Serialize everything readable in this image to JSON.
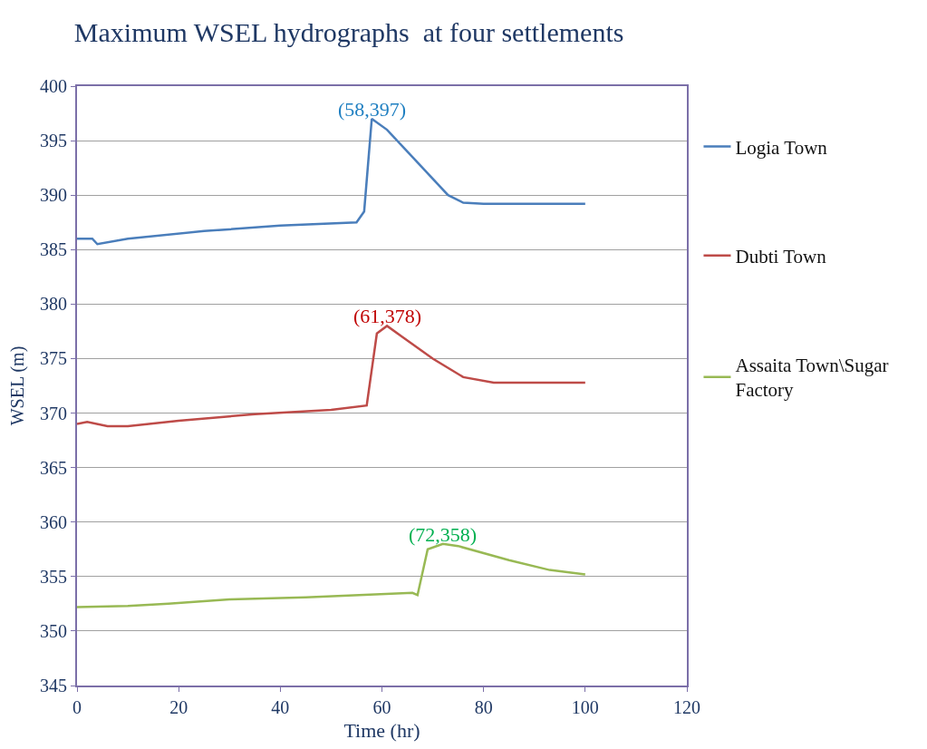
{
  "chart_data": {
    "type": "line",
    "title": "Maximum WSEL hydrographs  at four settlements",
    "xlabel": "Time (hr)",
    "ylabel": "WSEL (m)",
    "xlim": [
      0,
      120
    ],
    "xticks": [
      0,
      20,
      40,
      60,
      80,
      100,
      120
    ],
    "ylim": [
      345,
      400
    ],
    "yticks": [
      345,
      350,
      355,
      360,
      365,
      370,
      375,
      380,
      385,
      390,
      395,
      400
    ],
    "grid": "y",
    "legend": "right",
    "marker": "none",
    "line_style": "solid",
    "series": [
      {
        "name": "Logia Town",
        "color": "#4a7ebb",
        "x": [
          0,
          3,
          4,
          10,
          25,
          40,
          55,
          56.5,
          58,
          61,
          67,
          73,
          76,
          80,
          100
        ],
        "values": [
          386,
          386,
          385.5,
          386,
          386.7,
          387.2,
          387.5,
          388.5,
          397,
          396,
          393,
          390,
          389.3,
          389.2,
          389.2
        ]
      },
      {
        "name": "Dubti Town",
        "color": "#be4b48",
        "x": [
          0,
          2,
          6,
          10,
          20,
          35,
          50,
          57,
          59,
          61,
          64,
          70,
          76,
          82,
          100
        ],
        "values": [
          369,
          369.2,
          368.8,
          368.8,
          369.3,
          369.9,
          370.3,
          370.7,
          377.3,
          378,
          377,
          375,
          373.3,
          372.8,
          372.8
        ]
      },
      {
        "name": "Assaita Town\\Sugar Factory",
        "color": "#98b954",
        "x": [
          0,
          10,
          18,
          30,
          45,
          66,
          67,
          69,
          72,
          75,
          85,
          93,
          100
        ],
        "values": [
          352.2,
          352.3,
          352.5,
          352.9,
          353.1,
          353.5,
          353.3,
          357.5,
          358,
          357.8,
          356.5,
          355.6,
          355.2
        ]
      }
    ],
    "annotations": [
      {
        "text": "(58,397)",
        "x": 58,
        "y": 397
      },
      {
        "text": "(61,378)",
        "x": 61,
        "y": 378
      },
      {
        "text": "(72,358)",
        "x": 72,
        "y": 358
      }
    ]
  }
}
